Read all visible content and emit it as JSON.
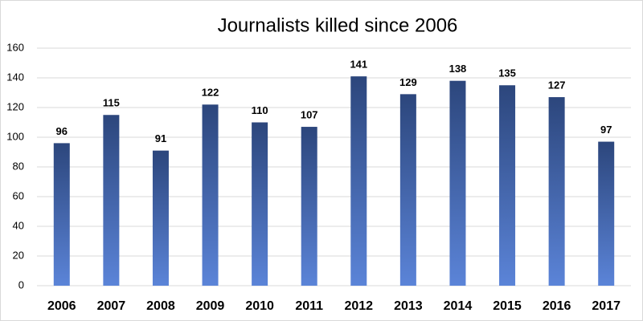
{
  "chart_data": {
    "type": "bar",
    "title": "Journalists killed since 2006",
    "categories": [
      "2006",
      "2007",
      "2008",
      "2009",
      "2010",
      "2011",
      "2012",
      "2013",
      "2014",
      "2015",
      "2016",
      "2017"
    ],
    "values": [
      96,
      115,
      91,
      122,
      110,
      107,
      141,
      129,
      138,
      135,
      127,
      97
    ],
    "gradient_colors": [
      "#2c467c",
      "#5b84d8"
    ],
    "ylim": [
      0,
      160
    ],
    "yticks": [
      0,
      20,
      40,
      60,
      80,
      100,
      120,
      140,
      160
    ],
    "grid": true
  }
}
